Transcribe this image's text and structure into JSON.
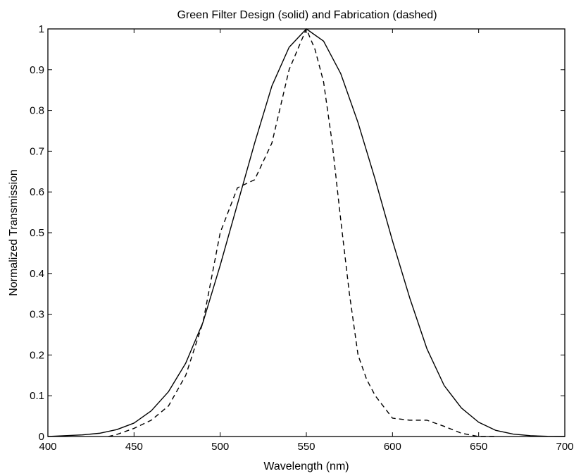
{
  "chart_data": {
    "type": "line",
    "title": "Green Filter Design (solid) and Fabrication (dashed)",
    "xlabel": "Wavelength (nm)",
    "ylabel": "Normalized Transmission",
    "xlim": [
      400,
      700
    ],
    "ylim": [
      0,
      1
    ],
    "xticks": [
      400,
      450,
      500,
      550,
      600,
      650,
      700
    ],
    "yticks": [
      0,
      0.1,
      0.2,
      0.3,
      0.4,
      0.5,
      0.6,
      0.7,
      0.8,
      0.9,
      1
    ],
    "ytick_labels": [
      "0",
      "0.1",
      "0.2",
      "0.3",
      "0.4",
      "0.5",
      "0.6",
      "0.7",
      "0.8",
      "0.9",
      "1"
    ],
    "grid": false,
    "legend": "none",
    "series": [
      {
        "style": "solid",
        "color": "#000000",
        "x": [
          400,
          410,
          420,
          430,
          440,
          450,
          460,
          470,
          480,
          490,
          500,
          510,
          520,
          530,
          540,
          550,
          560,
          570,
          580,
          590,
          600,
          610,
          620,
          630,
          640,
          650,
          660,
          670,
          680,
          690,
          700
        ],
        "y": [
          0.0,
          0.002,
          0.004,
          0.008,
          0.017,
          0.033,
          0.063,
          0.11,
          0.18,
          0.28,
          0.42,
          0.57,
          0.72,
          0.86,
          0.955,
          1.0,
          0.97,
          0.89,
          0.77,
          0.63,
          0.48,
          0.34,
          0.215,
          0.125,
          0.07,
          0.035,
          0.015,
          0.006,
          0.002,
          0.0005,
          0.0
        ]
      },
      {
        "style": "dashed",
        "color": "#000000",
        "x": [
          435,
          440,
          450,
          460,
          470,
          480,
          490,
          500,
          510,
          520,
          530,
          540,
          550,
          555,
          560,
          565,
          570,
          575,
          580,
          585,
          590,
          600,
          610,
          620,
          630,
          640,
          650,
          660
        ],
        "y": [
          0.0,
          0.005,
          0.02,
          0.04,
          0.075,
          0.15,
          0.28,
          0.5,
          0.61,
          0.63,
          0.72,
          0.9,
          1.0,
          0.95,
          0.87,
          0.72,
          0.53,
          0.35,
          0.2,
          0.14,
          0.1,
          0.045,
          0.04,
          0.04,
          0.025,
          0.008,
          0.0,
          0.0
        ]
      }
    ]
  }
}
